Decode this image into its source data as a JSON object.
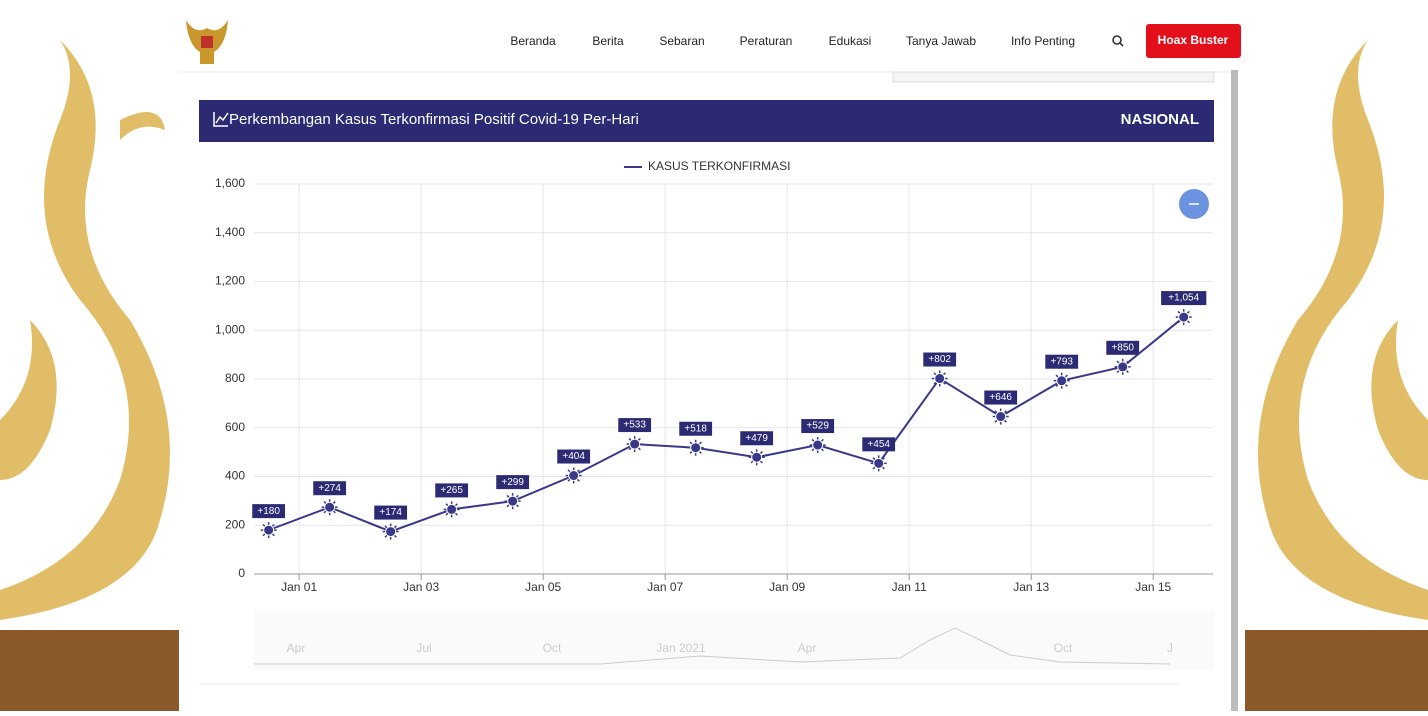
{
  "nav": {
    "items": [
      "Beranda",
      "Berita",
      "Sebaran",
      "Peraturan",
      "Edukasi",
      "Tanya Jawab",
      "Info Penting"
    ],
    "button": "Hoax Buster"
  },
  "panel": {
    "title": "Perkembangan Kasus Terkonfirmasi Positif Covid-19 Per-Hari",
    "region": "NASIONAL"
  },
  "chart_data": {
    "type": "line",
    "series": [
      {
        "name": "KASUS TERKONFIRMASI",
        "color": "#3a3889",
        "x": [
          0.5,
          1.5,
          2.5,
          3.5,
          4.5,
          5.5,
          6.5,
          7.5,
          8.5,
          9.5,
          10.5,
          11.5,
          12.5,
          13.5,
          14.5,
          15.5
        ],
        "values": [
          180,
          274,
          174,
          265,
          299,
          404,
          533,
          518,
          479,
          529,
          454,
          802,
          646,
          793,
          850,
          1054
        ],
        "value_labels": [
          "+180",
          "+274",
          "+174",
          "+265",
          "+299",
          "+404",
          "+533",
          "+518",
          "+479",
          "+529",
          "+454",
          "+802",
          "+646",
          "+793",
          "+850",
          "+1,054"
        ]
      }
    ],
    "xlim": [
      0.26,
      15.98
    ],
    "xticks": [
      {
        "value": 1,
        "label": "Jan 01"
      },
      {
        "value": 3,
        "label": "Jan 03"
      },
      {
        "value": 5,
        "label": "Jan 05"
      },
      {
        "value": 7,
        "label": "Jan 07"
      },
      {
        "value": 9,
        "label": "Jan 09"
      },
      {
        "value": 11,
        "label": "Jan 11"
      },
      {
        "value": 13,
        "label": "Jan 13"
      },
      {
        "value": 15,
        "label": "Jan 15"
      }
    ],
    "ylim": [
      0,
      1600
    ],
    "yticks": [
      0,
      200,
      400,
      600,
      800,
      {
        "value": 1000,
        "label": "1,000"
      },
      {
        "value": 1200,
        "label": "1,200"
      },
      {
        "value": 1400,
        "label": "1,400"
      },
      {
        "value": 1600,
        "label": "1,600"
      }
    ],
    "grid": true,
    "navigator": [
      "Apr",
      "Jul",
      "Oct",
      "Jan 2021",
      "Apr",
      "Oct",
      "J"
    ]
  }
}
